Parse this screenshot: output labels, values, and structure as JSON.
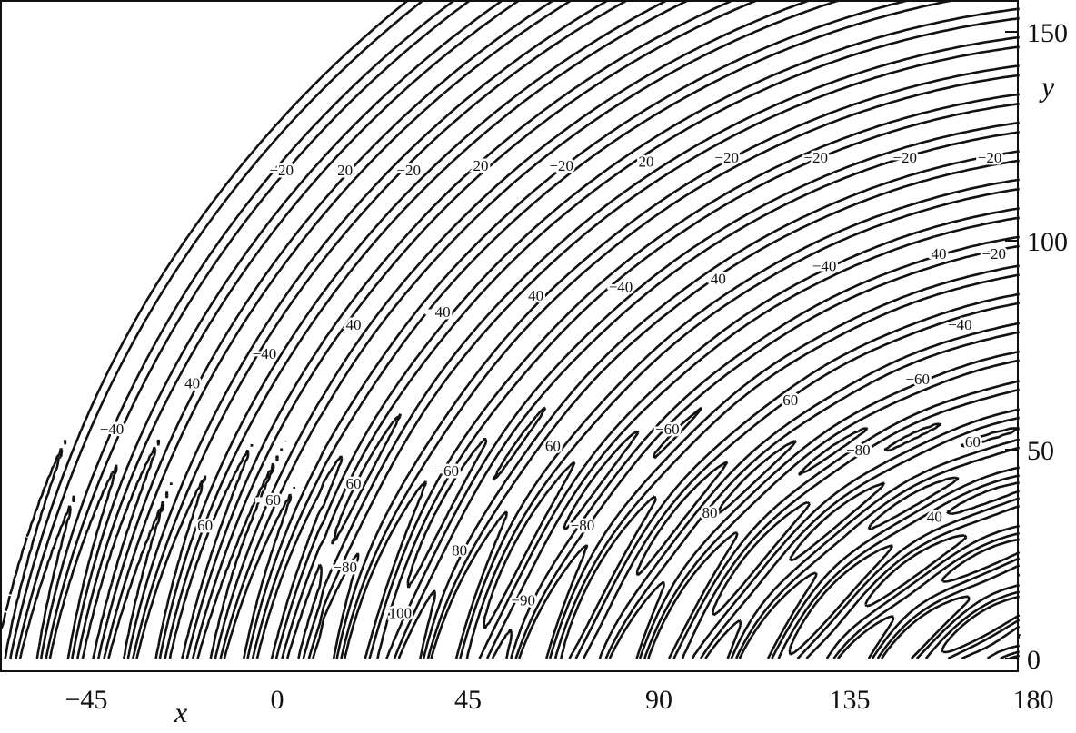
{
  "chart_data": {
    "type": "contour",
    "title": "",
    "xlabel": "x",
    "ylabel": "y",
    "xlim": [
      -65,
      175
    ],
    "ylim": [
      0,
      160
    ],
    "xticks": [
      -45,
      0,
      45,
      90,
      135,
      180
    ],
    "yticks": [
      0,
      50,
      100,
      150
    ],
    "grid": false,
    "line_style": {
      "positive": "solid",
      "negative": "dashed"
    },
    "line_color": "#111111",
    "contour_labels": [
      {
        "text": "−20",
        "x": 1,
        "y": 117
      },
      {
        "text": "20",
        "x": 16,
        "y": 117
      },
      {
        "text": "−20",
        "x": 31,
        "y": 117
      },
      {
        "text": "20",
        "x": 48,
        "y": 118
      },
      {
        "text": "−20",
        "x": 67,
        "y": 118
      },
      {
        "text": "20",
        "x": 87,
        "y": 119
      },
      {
        "text": "−20",
        "x": 106,
        "y": 120
      },
      {
        "text": "−20",
        "x": 127,
        "y": 120
      },
      {
        "text": "−20",
        "x": 148,
        "y": 120
      },
      {
        "text": "−20",
        "x": 168,
        "y": 120
      },
      {
        "text": "40",
        "x": 156,
        "y": 97
      },
      {
        "text": "−20",
        "x": 169,
        "y": 97
      },
      {
        "text": "−40",
        "x": 129,
        "y": 94
      },
      {
        "text": "40",
        "x": 104,
        "y": 91
      },
      {
        "text": "−40",
        "x": 81,
        "y": 89
      },
      {
        "text": "40",
        "x": 61,
        "y": 87
      },
      {
        "text": "−40",
        "x": 38,
        "y": 83
      },
      {
        "text": "40",
        "x": 18,
        "y": 80
      },
      {
        "text": "−40",
        "x": -3,
        "y": 73
      },
      {
        "text": "40",
        "x": -20,
        "y": 66
      },
      {
        "text": "−40",
        "x": -39,
        "y": 55
      },
      {
        "text": "−40",
        "x": 161,
        "y": 80
      },
      {
        "text": "−60",
        "x": 151,
        "y": 67
      },
      {
        "text": "60",
        "x": 121,
        "y": 62
      },
      {
        "text": "−60",
        "x": 92,
        "y": 55
      },
      {
        "text": "60",
        "x": 65,
        "y": 51
      },
      {
        "text": "−60",
        "x": 40,
        "y": 45
      },
      {
        "text": "60",
        "x": 18,
        "y": 42
      },
      {
        "text": "−60",
        "x": -2,
        "y": 38
      },
      {
        "text": "60",
        "x": -17,
        "y": 32
      },
      {
        "text": "−80",
        "x": 137,
        "y": 50
      },
      {
        "text": "60",
        "x": 164,
        "y": 52
      },
      {
        "text": "80",
        "x": 102,
        "y": 35
      },
      {
        "text": "−80",
        "x": 72,
        "y": 32
      },
      {
        "text": "80",
        "x": 43,
        "y": 26
      },
      {
        "text": "−80",
        "x": 16,
        "y": 22
      },
      {
        "text": "40",
        "x": 155,
        "y": 34
      },
      {
        "text": "−90",
        "x": 58,
        "y": 14
      },
      {
        "text": "100",
        "x": 29,
        "y": 11
      }
    ]
  }
}
